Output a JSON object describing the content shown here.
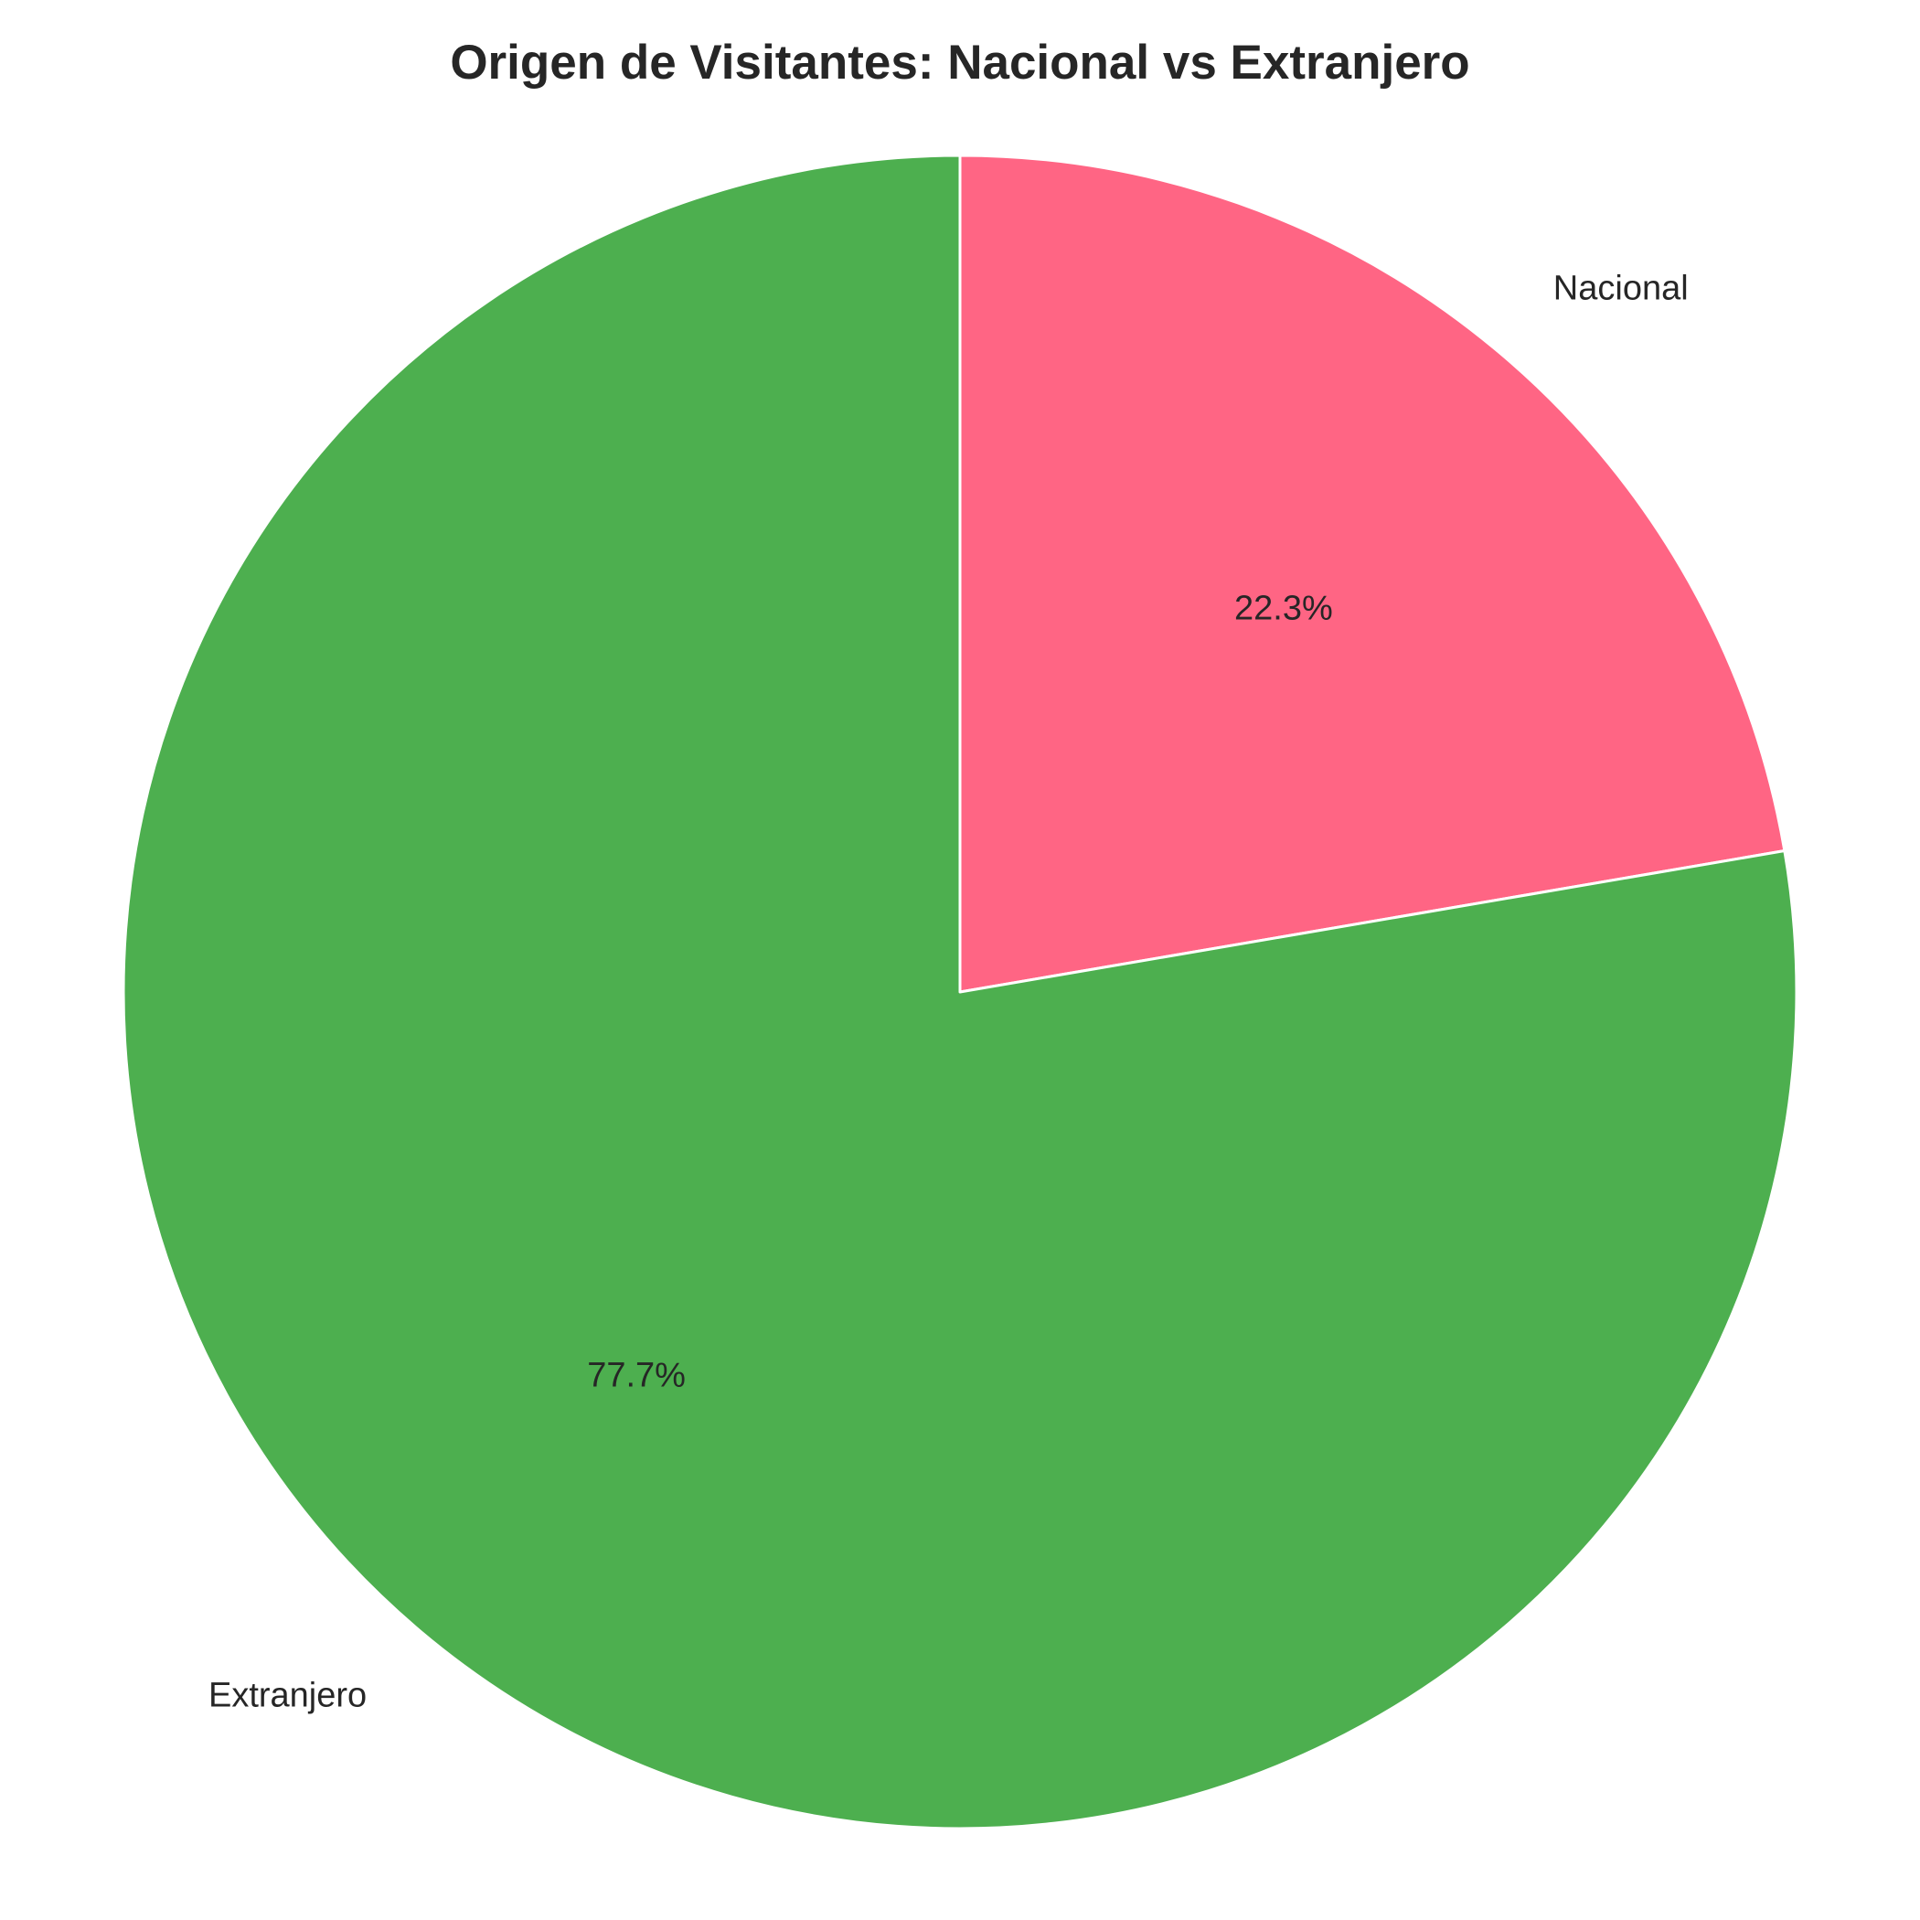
{
  "chart_data": {
    "type": "pie",
    "title": "Origen de Visitantes: Nacional vs Extranjero",
    "start_angle_deg": 90,
    "direction": "clockwise",
    "slices": [
      {
        "label": "Nacional",
        "value": 22.3,
        "pct_label": "22.3%",
        "color": "#ff6584"
      },
      {
        "label": "Extranjero",
        "value": 77.7,
        "pct_label": "77.7%",
        "color": "#4daf4f"
      }
    ],
    "edge_color": "#ffffff"
  }
}
